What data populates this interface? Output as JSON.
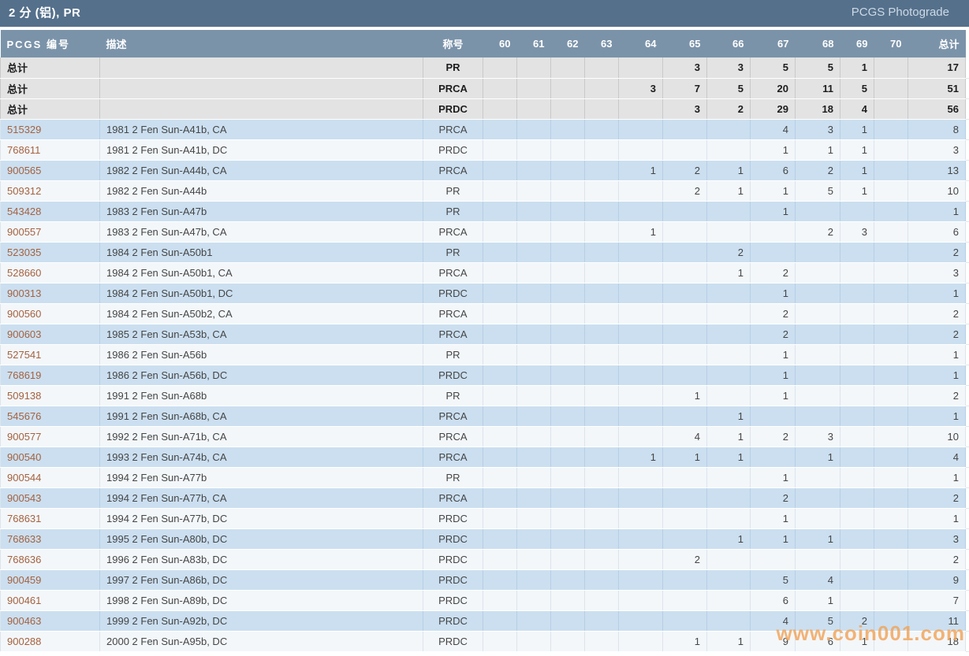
{
  "page": {
    "title": "2 分 (铝), PR",
    "header_link": "PCGS Photograde",
    "watermark": "www.coin001.com"
  },
  "colors": {
    "title_bar": "#55708b",
    "column_header_bar": "#7b93a9",
    "summary_row_bg": "#e3e3e3",
    "row_blue": "#cbdff0",
    "row_light": "#f3f7fa",
    "pcgs_link": "#a5613f",
    "watermark_orange": "#f2a255"
  },
  "table": {
    "columns": [
      "PCGS 编号",
      "描述",
      "称号",
      "60",
      "61",
      "62",
      "63",
      "64",
      "65",
      "66",
      "67",
      "68",
      "69",
      "70",
      "总计"
    ],
    "summary_label": "总计",
    "summary_rows": [
      {
        "designation": "PR",
        "grades": [
          "",
          "",
          "",
          "",
          "",
          "3",
          "3",
          "5",
          "5",
          "1",
          ""
        ],
        "total": "17"
      },
      {
        "designation": "PRCA",
        "grades": [
          "",
          "",
          "",
          "",
          "3",
          "7",
          "5",
          "20",
          "11",
          "5",
          ""
        ],
        "total": "51"
      },
      {
        "designation": "PRDC",
        "grades": [
          "",
          "",
          "",
          "",
          "",
          "3",
          "2",
          "29",
          "18",
          "4",
          ""
        ],
        "total": "56"
      }
    ],
    "rows": [
      {
        "pcgs": "515329",
        "desc": "1981 2 Fen Sun-A41b, CA",
        "designation": "PRCA",
        "grades": [
          "",
          "",
          "",
          "",
          "",
          "",
          "",
          "4",
          "3",
          "1",
          ""
        ],
        "total": "8"
      },
      {
        "pcgs": "768611",
        "desc": "1981 2 Fen Sun-A41b, DC",
        "designation": "PRDC",
        "grades": [
          "",
          "",
          "",
          "",
          "",
          "",
          "",
          "1",
          "1",
          "1",
          ""
        ],
        "total": "3"
      },
      {
        "pcgs": "900565",
        "desc": "1982 2 Fen Sun-A44b, CA",
        "designation": "PRCA",
        "grades": [
          "",
          "",
          "",
          "",
          "1",
          "2",
          "1",
          "6",
          "2",
          "1",
          ""
        ],
        "total": "13"
      },
      {
        "pcgs": "509312",
        "desc": "1982 2 Fen Sun-A44b",
        "designation": "PR",
        "grades": [
          "",
          "",
          "",
          "",
          "",
          "2",
          "1",
          "1",
          "5",
          "1",
          ""
        ],
        "total": "10"
      },
      {
        "pcgs": "543428",
        "desc": "1983 2 Fen Sun-A47b",
        "designation": "PR",
        "grades": [
          "",
          "",
          "",
          "",
          "",
          "",
          "",
          "1",
          "",
          "",
          ""
        ],
        "total": "1"
      },
      {
        "pcgs": "900557",
        "desc": "1983 2 Fen Sun-A47b, CA",
        "designation": "PRCA",
        "grades": [
          "",
          "",
          "",
          "",
          "1",
          "",
          "",
          "",
          "2",
          "3",
          ""
        ],
        "total": "6"
      },
      {
        "pcgs": "523035",
        "desc": "1984 2 Fen Sun-A50b1",
        "designation": "PR",
        "grades": [
          "",
          "",
          "",
          "",
          "",
          "",
          "2",
          "",
          "",
          "",
          ""
        ],
        "total": "2"
      },
      {
        "pcgs": "528660",
        "desc": "1984 2 Fen Sun-A50b1, CA",
        "designation": "PRCA",
        "grades": [
          "",
          "",
          "",
          "",
          "",
          "",
          "1",
          "2",
          "",
          "",
          ""
        ],
        "total": "3"
      },
      {
        "pcgs": "900313",
        "desc": "1984 2 Fen Sun-A50b1, DC",
        "designation": "PRDC",
        "grades": [
          "",
          "",
          "",
          "",
          "",
          "",
          "",
          "1",
          "",
          "",
          ""
        ],
        "total": "1"
      },
      {
        "pcgs": "900560",
        "desc": "1984 2 Fen Sun-A50b2, CA",
        "designation": "PRCA",
        "grades": [
          "",
          "",
          "",
          "",
          "",
          "",
          "",
          "2",
          "",
          "",
          ""
        ],
        "total": "2"
      },
      {
        "pcgs": "900603",
        "desc": "1985 2 Fen Sun-A53b, CA",
        "designation": "PRCA",
        "grades": [
          "",
          "",
          "",
          "",
          "",
          "",
          "",
          "2",
          "",
          "",
          ""
        ],
        "total": "2"
      },
      {
        "pcgs": "527541",
        "desc": "1986 2 Fen Sun-A56b",
        "designation": "PR",
        "grades": [
          "",
          "",
          "",
          "",
          "",
          "",
          "",
          "1",
          "",
          "",
          ""
        ],
        "total": "1"
      },
      {
        "pcgs": "768619",
        "desc": "1986 2 Fen Sun-A56b, DC",
        "designation": "PRDC",
        "grades": [
          "",
          "",
          "",
          "",
          "",
          "",
          "",
          "1",
          "",
          "",
          ""
        ],
        "total": "1"
      },
      {
        "pcgs": "509138",
        "desc": "1991 2 Fen Sun-A68b",
        "designation": "PR",
        "grades": [
          "",
          "",
          "",
          "",
          "",
          "1",
          "",
          "1",
          "",
          "",
          ""
        ],
        "total": "2"
      },
      {
        "pcgs": "545676",
        "desc": "1991 2 Fen Sun-A68b, CA",
        "designation": "PRCA",
        "grades": [
          "",
          "",
          "",
          "",
          "",
          "",
          "1",
          "",
          "",
          "",
          ""
        ],
        "total": "1"
      },
      {
        "pcgs": "900577",
        "desc": "1992 2 Fen Sun-A71b, CA",
        "designation": "PRCA",
        "grades": [
          "",
          "",
          "",
          "",
          "",
          "4",
          "1",
          "2",
          "3",
          "",
          ""
        ],
        "total": "10"
      },
      {
        "pcgs": "900540",
        "desc": "1993 2 Fen Sun-A74b, CA",
        "designation": "PRCA",
        "grades": [
          "",
          "",
          "",
          "",
          "1",
          "1",
          "1",
          "",
          "1",
          "",
          ""
        ],
        "total": "4"
      },
      {
        "pcgs": "900544",
        "desc": "1994 2 Fen Sun-A77b",
        "designation": "PR",
        "grades": [
          "",
          "",
          "",
          "",
          "",
          "",
          "",
          "1",
          "",
          "",
          ""
        ],
        "total": "1"
      },
      {
        "pcgs": "900543",
        "desc": "1994 2 Fen Sun-A77b, CA",
        "designation": "PRCA",
        "grades": [
          "",
          "",
          "",
          "",
          "",
          "",
          "",
          "2",
          "",
          "",
          ""
        ],
        "total": "2"
      },
      {
        "pcgs": "768631",
        "desc": "1994 2 Fen Sun-A77b, DC",
        "designation": "PRDC",
        "grades": [
          "",
          "",
          "",
          "",
          "",
          "",
          "",
          "1",
          "",
          "",
          ""
        ],
        "total": "1"
      },
      {
        "pcgs": "768633",
        "desc": "1995 2 Fen Sun-A80b, DC",
        "designation": "PRDC",
        "grades": [
          "",
          "",
          "",
          "",
          "",
          "",
          "1",
          "1",
          "1",
          "",
          ""
        ],
        "total": "3"
      },
      {
        "pcgs": "768636",
        "desc": "1996 2 Fen Sun-A83b, DC",
        "designation": "PRDC",
        "grades": [
          "",
          "",
          "",
          "",
          "",
          "2",
          "",
          "",
          "",
          "",
          ""
        ],
        "total": "2"
      },
      {
        "pcgs": "900459",
        "desc": "1997 2 Fen Sun-A86b, DC",
        "designation": "PRDC",
        "grades": [
          "",
          "",
          "",
          "",
          "",
          "",
          "",
          "5",
          "4",
          "",
          ""
        ],
        "total": "9"
      },
      {
        "pcgs": "900461",
        "desc": "1998 2 Fen Sun-A89b, DC",
        "designation": "PRDC",
        "grades": [
          "",
          "",
          "",
          "",
          "",
          "",
          "",
          "6",
          "1",
          "",
          ""
        ],
        "total": "7"
      },
      {
        "pcgs": "900463",
        "desc": "1999 2 Fen Sun-A92b, DC",
        "designation": "PRDC",
        "grades": [
          "",
          "",
          "",
          "",
          "",
          "",
          "",
          "4",
          "5",
          "2",
          ""
        ],
        "total": "11"
      },
      {
        "pcgs": "900288",
        "desc": "2000 2 Fen Sun-A95b, DC",
        "designation": "PRDC",
        "grades": [
          "",
          "",
          "",
          "",
          "",
          "1",
          "1",
          "9",
          "6",
          "1",
          ""
        ],
        "total": "18"
      }
    ]
  }
}
